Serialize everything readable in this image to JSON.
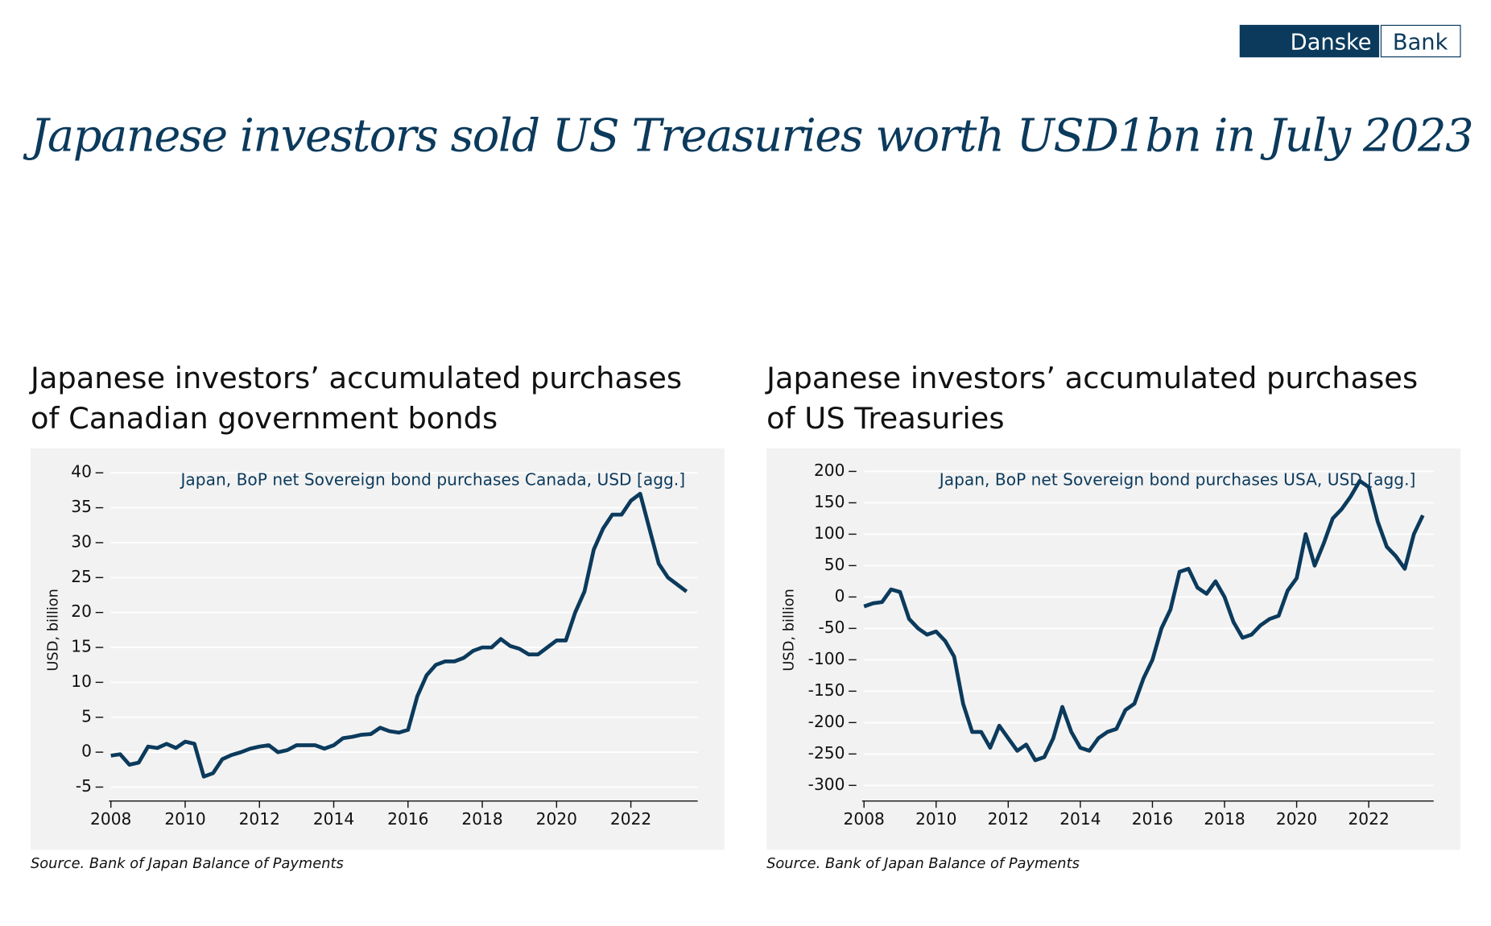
{
  "header": {
    "logo": [
      "Danske",
      "Bank"
    ],
    "title": "Japanese investors sold US Treasuries worth USD1bn in July 2023"
  },
  "chart_data": [
    {
      "type": "line",
      "title": [
        "Japanese investors’ accumulated purchases",
        "of Canadian government bonds"
      ],
      "ylabel": "USD, billion",
      "source": "Source. Bank of Japan Balance of Payments",
      "grid": true,
      "x": [
        2008,
        2008.25,
        2008.5,
        2008.75,
        2009,
        2009.25,
        2009.5,
        2009.75,
        2010,
        2010.25,
        2010.5,
        2010.75,
        2011,
        2011.25,
        2011.5,
        2011.75,
        2012,
        2012.25,
        2012.5,
        2012.75,
        2013,
        2013.25,
        2013.5,
        2013.75,
        2014,
        2014.25,
        2014.5,
        2014.75,
        2015,
        2015.25,
        2015.5,
        2015.75,
        2016,
        2016.25,
        2016.5,
        2016.75,
        2017,
        2017.25,
        2017.5,
        2017.75,
        2018,
        2018.25,
        2018.5,
        2018.75,
        2019,
        2019.25,
        2019.5,
        2019.75,
        2020,
        2020.25,
        2020.5,
        2020.75,
        2021,
        2021.25,
        2021.5,
        2021.75,
        2022,
        2022.25,
        2022.5,
        2022.75,
        2023,
        2023.25,
        2023.5
      ],
      "series": [
        {
          "name": "Japan, BoP net Sovereign bond purchases Canada, USD [agg.]",
          "color": "#0b3a5c",
          "values": [
            -0.5,
            -0.3,
            -1.8,
            -1.5,
            0.8,
            0.6,
            1.2,
            0.6,
            1.5,
            1.2,
            -3.5,
            -3,
            -1,
            -0.4,
            0,
            0.5,
            0.8,
            1,
            0,
            0.3,
            1,
            1,
            1,
            0.5,
            1,
            2,
            2.2,
            2.5,
            2.6,
            3.5,
            3,
            2.8,
            3.2,
            8,
            11,
            12.5,
            13,
            13,
            13.5,
            14.5,
            15,
            15,
            16.2,
            15.2,
            14.8,
            14,
            14,
            15,
            16,
            16,
            20,
            23,
            29,
            32,
            34,
            34,
            36,
            37,
            32,
            27,
            25,
            24,
            23
          ]
        }
      ],
      "xlim": [
        2008,
        2023.8
      ],
      "xticks": [
        2008,
        2010,
        2012,
        2014,
        2016,
        2018,
        2020,
        2022
      ],
      "ylim": [
        -7,
        42
      ],
      "yticks": [
        -5,
        0,
        5,
        10,
        15,
        20,
        25,
        30,
        35,
        40
      ]
    },
    {
      "type": "line",
      "title": [
        "Japanese investors’ accumulated purchases",
        "of US Treasuries"
      ],
      "ylabel": "USD, billion",
      "source": "Source. Bank of Japan Balance of Payments",
      "grid": true,
      "x": [
        2008,
        2008.25,
        2008.5,
        2008.75,
        2009,
        2009.25,
        2009.5,
        2009.75,
        2010,
        2010.25,
        2010.5,
        2010.75,
        2011,
        2011.25,
        2011.5,
        2011.75,
        2012,
        2012.25,
        2012.5,
        2012.75,
        2013,
        2013.25,
        2013.5,
        2013.75,
        2014,
        2014.25,
        2014.5,
        2014.75,
        2015,
        2015.25,
        2015.5,
        2015.75,
        2016,
        2016.25,
        2016.5,
        2016.75,
        2017,
        2017.25,
        2017.5,
        2017.75,
        2018,
        2018.25,
        2018.5,
        2018.75,
        2019,
        2019.25,
        2019.5,
        2019.75,
        2020,
        2020.25,
        2020.5,
        2020.75,
        2021,
        2021.25,
        2021.5,
        2021.75,
        2022,
        2022.25,
        2022.5,
        2022.75,
        2023,
        2023.25,
        2023.5
      ],
      "series": [
        {
          "name": "Japan, BoP net Sovereign bond purchases USA, USD [agg.]",
          "color": "#0b3a5c",
          "values": [
            -15,
            -10,
            -8,
            12,
            8,
            -35,
            -50,
            -60,
            -55,
            -70,
            -95,
            -170,
            -215,
            -215,
            -240,
            -205,
            -225,
            -245,
            -235,
            -260,
            -255,
            -225,
            -175,
            -215,
            -240,
            -245,
            -225,
            -215,
            -210,
            -180,
            -170,
            -130,
            -100,
            -50,
            -20,
            40,
            45,
            15,
            5,
            25,
            0,
            -40,
            -65,
            -60,
            -45,
            -35,
            -30,
            10,
            30,
            100,
            50,
            85,
            125,
            140,
            160,
            185,
            175,
            120,
            80,
            65,
            45,
            100,
            130
          ]
        }
      ],
      "xlim": [
        2008,
        2023.8
      ],
      "xticks": [
        2008,
        2010,
        2012,
        2014,
        2016,
        2018,
        2020,
        2022
      ],
      "ylim": [
        -325,
        220
      ],
      "yticks": [
        -300,
        -250,
        -200,
        -150,
        -100,
        -50,
        0,
        50,
        100,
        150,
        200
      ]
    }
  ]
}
